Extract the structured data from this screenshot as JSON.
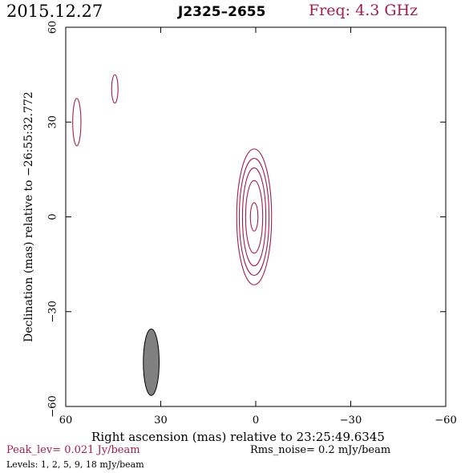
{
  "header": {
    "date": "2015.12.27",
    "source": "J2325–2655",
    "freq": "Freq: 4.3 GHz"
  },
  "footer": {
    "peak": "Peak_lev=  0.021 Jy/beam",
    "rms": "Rms_noise=  0.2 mJy/beam",
    "levels": "Levels:   1,   2,   5,   9,  18 mJy/beam"
  },
  "colors": {
    "contour": "#a0204a",
    "beam": "#808080",
    "axis": "#000000"
  },
  "chart_data": {
    "type": "contour",
    "xlabel": "Right ascension (mas) relative to 23:25:49.6345",
    "ylabel": "Declination (mas) relative to −26:55:32.772",
    "xlim": [
      60,
      -60
    ],
    "ylim": [
      -60,
      60
    ],
    "x_ticks": [
      60,
      30,
      0,
      -30,
      -60
    ],
    "x_tick_labels": [
      "60",
      "30",
      "0",
      "−30",
      "−60"
    ],
    "y_ticks": [
      -60,
      -30,
      0,
      30,
      60
    ],
    "y_tick_labels": [
      "−60",
      "−30",
      "0",
      "30",
      "60"
    ],
    "contour_levels_mJy": [
      1,
      2,
      5,
      9,
      18
    ],
    "components": [
      {
        "x": 0.5,
        "y": 0,
        "contours": [
          {
            "level": 1,
            "ra_semi": 5.5,
            "dec_semi": 21.5
          },
          {
            "level": 2,
            "ra_semi": 4.7,
            "dec_semi": 18.5
          },
          {
            "level": 5,
            "ra_semi": 3.7,
            "dec_semi": 15.5
          },
          {
            "level": 9,
            "ra_semi": 2.7,
            "dec_semi": 11.5
          },
          {
            "level": 18,
            "ra_semi": 1.2,
            "dec_semi": 4.5
          }
        ]
      },
      {
        "x": 56.5,
        "y": 30,
        "contours": [
          {
            "level": 1,
            "ra_semi": 1.3,
            "dec_semi": 7.5
          }
        ]
      },
      {
        "x": 44.5,
        "y": 40.5,
        "contours": [
          {
            "level": 1,
            "ra_semi": 1.0,
            "dec_semi": 4.5
          }
        ]
      }
    ],
    "beam": {
      "x": 33,
      "y": -46,
      "ra_semi": 2.5,
      "dec_semi": 10.5
    }
  }
}
